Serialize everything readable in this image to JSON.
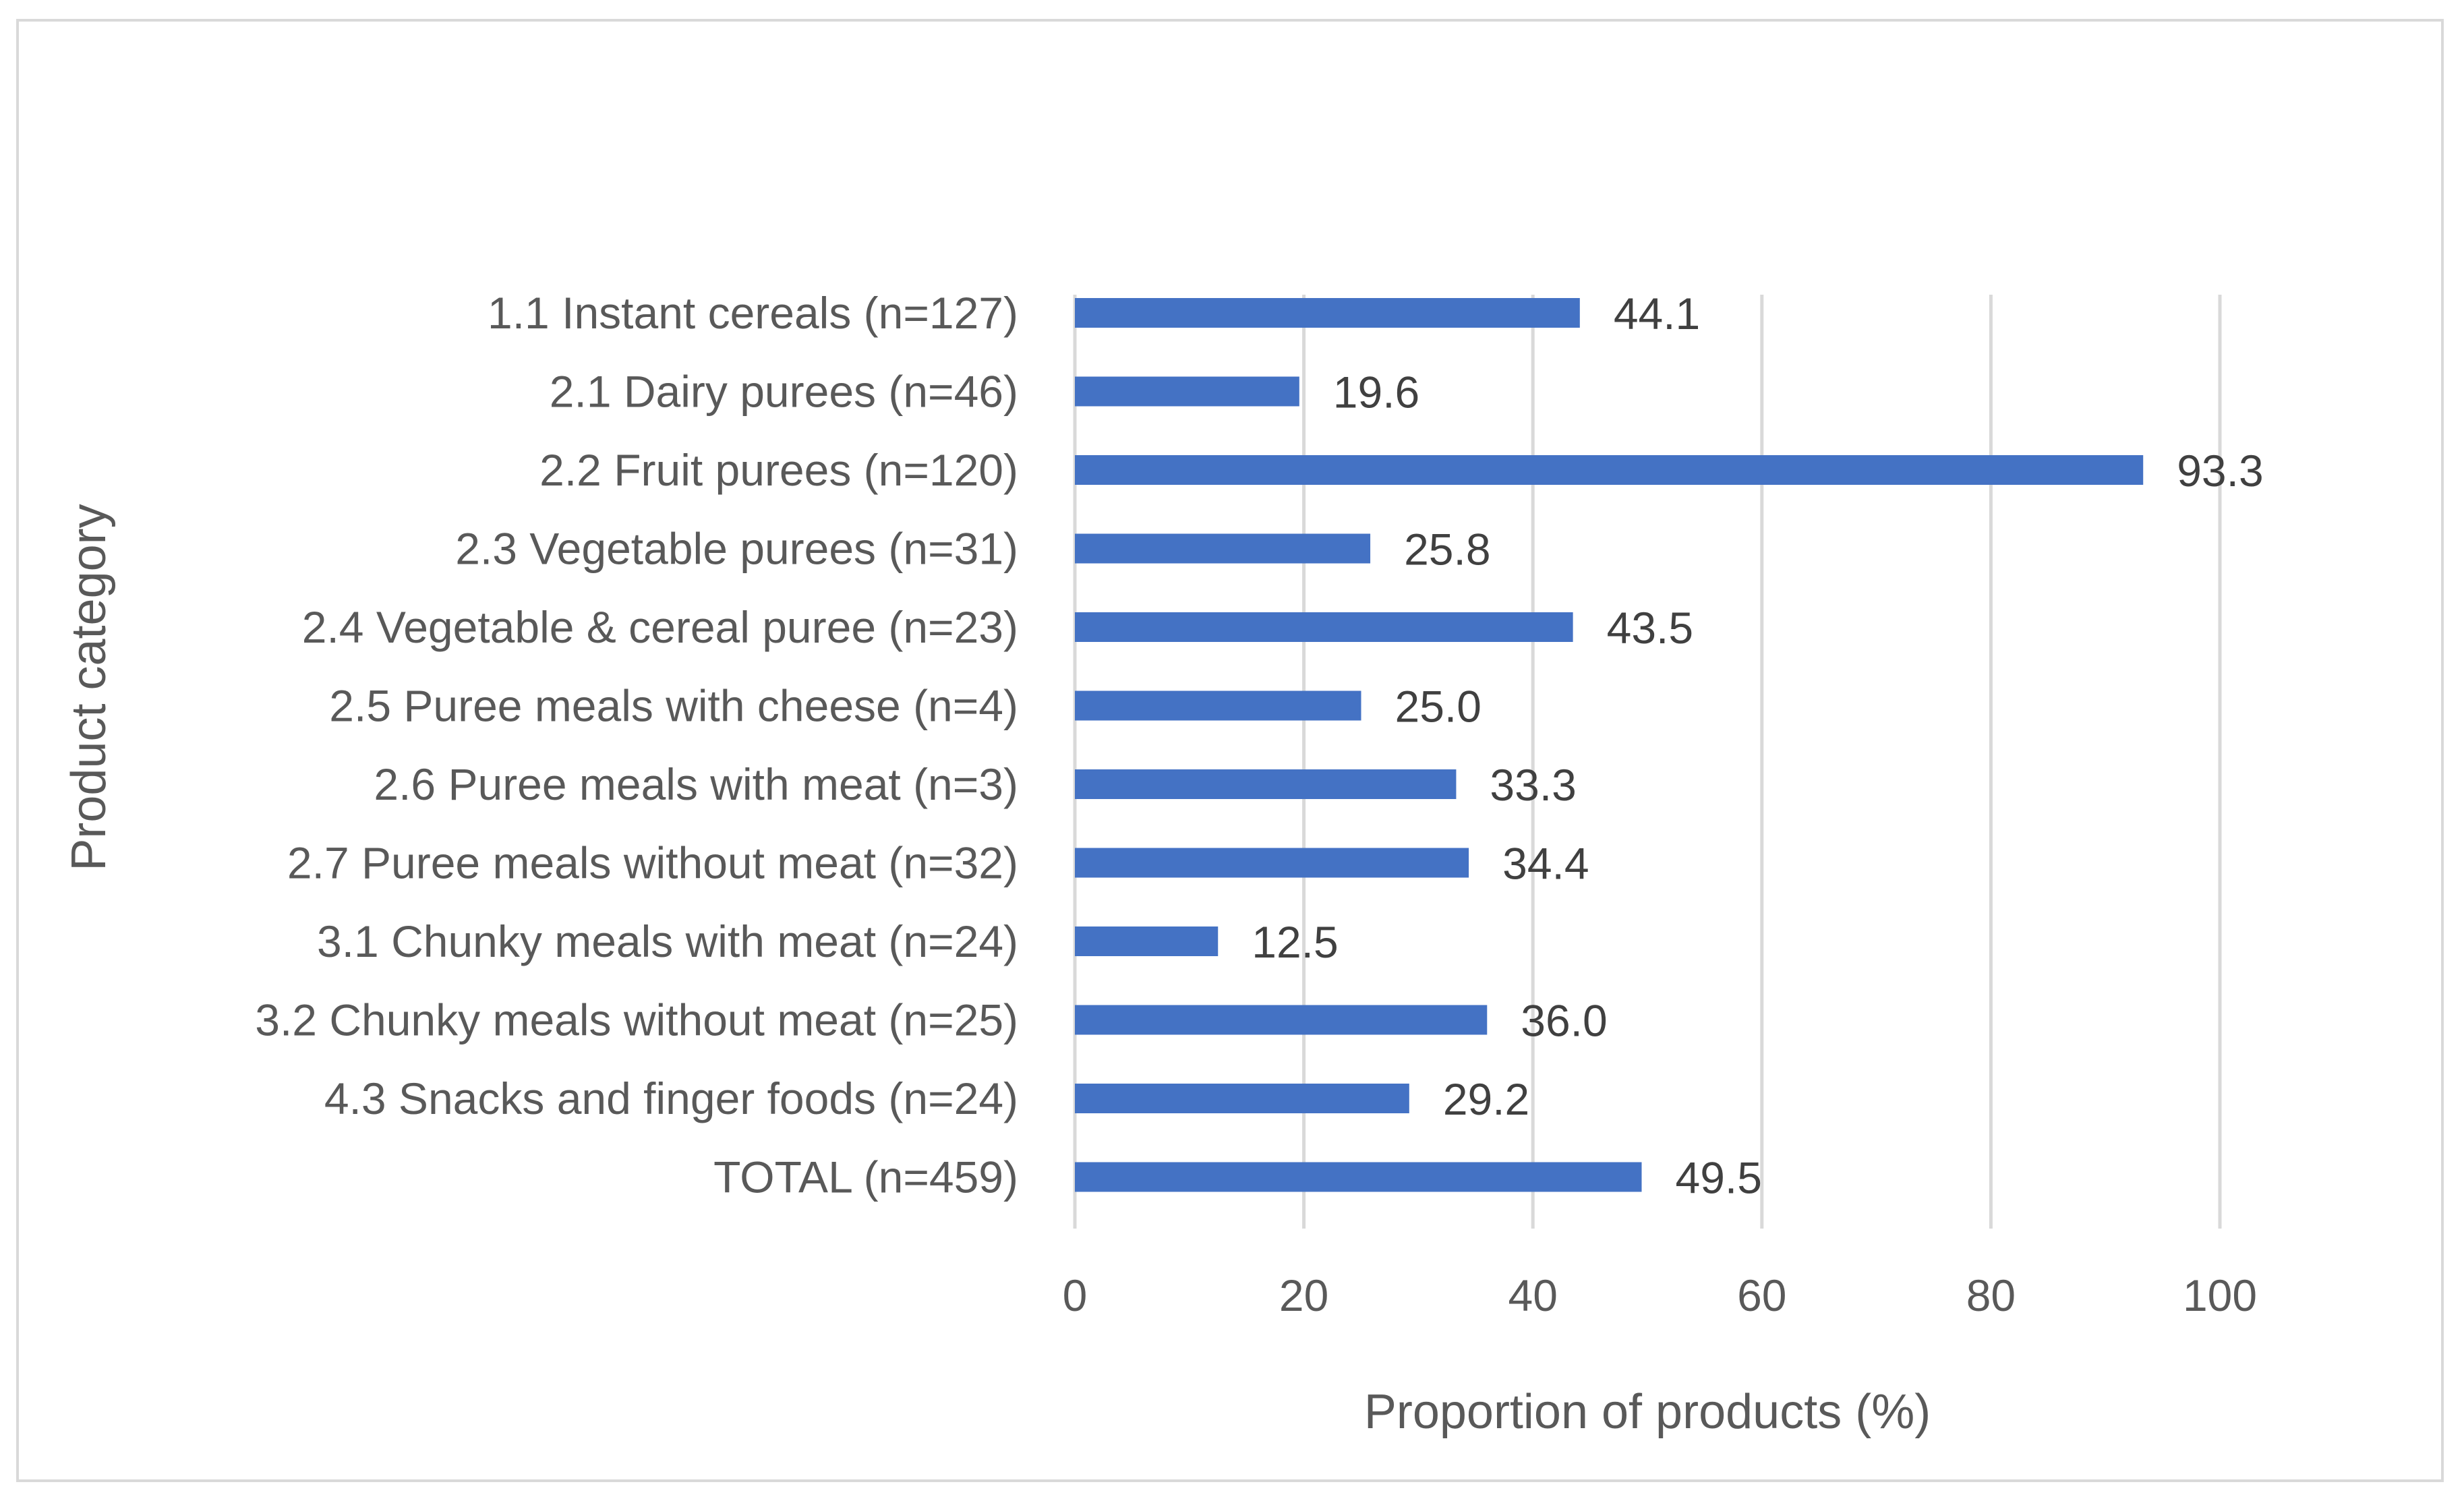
{
  "chart_data": {
    "type": "bar",
    "orientation": "horizontal",
    "title": "",
    "xlabel": "Proportion of products (%)",
    "ylabel": "Product category",
    "xlim": [
      0,
      100
    ],
    "xticks": [
      "0",
      "20",
      "40",
      "60",
      "80",
      "100"
    ],
    "grid": true,
    "legend": "none",
    "bar_color": "#4472c4",
    "categories": [
      "1.1 Instant cereals (n=127)",
      "2.1 Dairy purees (n=46)",
      "2.2 Fruit purees (n=120)",
      "2.3 Vegetable purees (n=31)",
      "2.4 Vegetable & cereal puree (n=23)",
      "2.5 Puree meals with cheese (n=4)",
      "2.6 Puree meals with meat (n=3)",
      "2.7 Puree meals without meat (n=32)",
      "3.1 Chunky meals with meat (n=24)",
      "3.2 Chunky meals without meat (n=25)",
      "4.3 Snacks and finger foods (n=24)",
      "TOTAL (n=459)"
    ],
    "values": [
      44.1,
      19.6,
      93.3,
      25.8,
      43.5,
      25.0,
      33.3,
      34.4,
      12.5,
      36.0,
      29.2,
      49.5
    ],
    "value_labels": [
      "44.1",
      "19.6",
      "93.3",
      "25.8",
      "43.5",
      "25.0",
      "33.3",
      "34.4",
      "12.5",
      "36.0",
      "29.2",
      "49.5"
    ]
  }
}
